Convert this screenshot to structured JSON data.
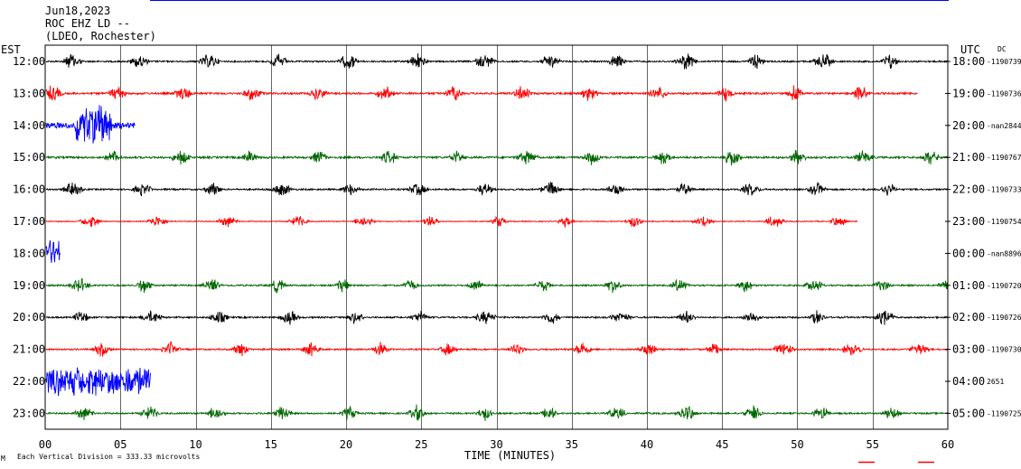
{
  "header": {
    "date": "Jun18,2023",
    "station": "ROC EHZ LD --",
    "network": "(LDEO, Rochester)",
    "left_zone": "EST",
    "right_zone": "UTC",
    "dc_label": "DC"
  },
  "footer": {
    "scale_note": "Each Vertical Division = 333.33 microvolts",
    "corner_mark": "M"
  },
  "colors": {
    "cycle": [
      "#000000",
      "#ff0000",
      "#0000ff",
      "#006600"
    ],
    "frame": "#000000",
    "grid": "#000000",
    "top_bar": "#0000ff",
    "corner_ticks": "#ff0000"
  },
  "chart_data": {
    "type": "line",
    "title": "",
    "xlabel": "TIME (MINUTES)",
    "ylabel": "",
    "xlim": [
      0,
      60
    ],
    "x_ticks": [
      0,
      5,
      10,
      15,
      20,
      25,
      30,
      35,
      40,
      45,
      50,
      55,
      60
    ],
    "x_tick_labels": [
      "00",
      "05",
      "10",
      "15",
      "20",
      "25",
      "30",
      "35",
      "40",
      "45",
      "50",
      "55",
      "60"
    ],
    "grid": true,
    "rows": [
      {
        "left": "12:00",
        "right": "18:00",
        "dc": "-1190739",
        "color": "#000000",
        "end_min": 60,
        "noise": 0.12,
        "burst_start": 1.8,
        "burst_amp": 1.05
      },
      {
        "left": "13:00",
        "right": "19:00",
        "dc": "-1190736",
        "color": "#ff0000",
        "end_min": 58,
        "noise": 0.15,
        "burst_start": 0.5,
        "burst_amp": 1.0
      },
      {
        "left": "14:00",
        "right": "20:00",
        "dc": "-nan2844",
        "color": "#0000ff",
        "end_min": 6,
        "noise": 0.45,
        "burst_start": 99,
        "burst_amp": 0.0,
        "quake": {
          "start": 2,
          "end": 4.5,
          "amp": 2.6
        }
      },
      {
        "left": "15:00",
        "right": "21:00",
        "dc": "-1190767",
        "color": "#006600",
        "end_min": 60,
        "noise": 0.15,
        "burst_start": 4.5,
        "burst_amp": 0.95
      },
      {
        "left": "16:00",
        "right": "22:00",
        "dc": "-1190733",
        "color": "#000000",
        "end_min": 60,
        "noise": 0.12,
        "burst_start": 1.8,
        "burst_amp": 0.95
      },
      {
        "left": "17:00",
        "right": "23:00",
        "dc": "-1190754",
        "color": "#ff0000",
        "end_min": 54,
        "noise": 0.07,
        "burst_start": 3.0,
        "burst_amp": 0.85
      },
      {
        "left": "18:00",
        "right": "00:00",
        "dc": "-nan8896",
        "color": "#0000ff",
        "end_min": 1,
        "noise": 0.8,
        "burst_start": 99,
        "burst_amp": 0.0,
        "quake": {
          "start": 0,
          "end": 1,
          "amp": 1.3
        }
      },
      {
        "left": "19:00",
        "right": "01:00",
        "dc": "-1190720",
        "color": "#006600",
        "end_min": 60,
        "noise": 0.12,
        "burst_start": 2.3,
        "burst_amp": 0.95
      },
      {
        "left": "20:00",
        "right": "02:00",
        "dc": "-1190726",
        "color": "#000000",
        "end_min": 60,
        "noise": 0.12,
        "burst_start": 2.4,
        "burst_amp": 0.9
      },
      {
        "left": "21:00",
        "right": "03:00",
        "dc": "-1190730",
        "color": "#ff0000",
        "end_min": 60,
        "noise": 0.12,
        "burst_start": 3.8,
        "burst_amp": 0.95
      },
      {
        "left": "22:00",
        "right": "04:00",
        "dc": "2651",
        "color": "#0000ff",
        "end_min": 7,
        "noise": 0.6,
        "burst_start": 99,
        "burst_amp": 0.0,
        "quake": {
          "start": 0,
          "end": 7,
          "amp": 1.6
        }
      },
      {
        "left": "23:00",
        "right": "05:00",
        "dc": "-1190725",
        "color": "#006600",
        "end_min": 60,
        "noise": 0.12,
        "burst_start": 2.6,
        "burst_amp": 1.0
      }
    ]
  }
}
